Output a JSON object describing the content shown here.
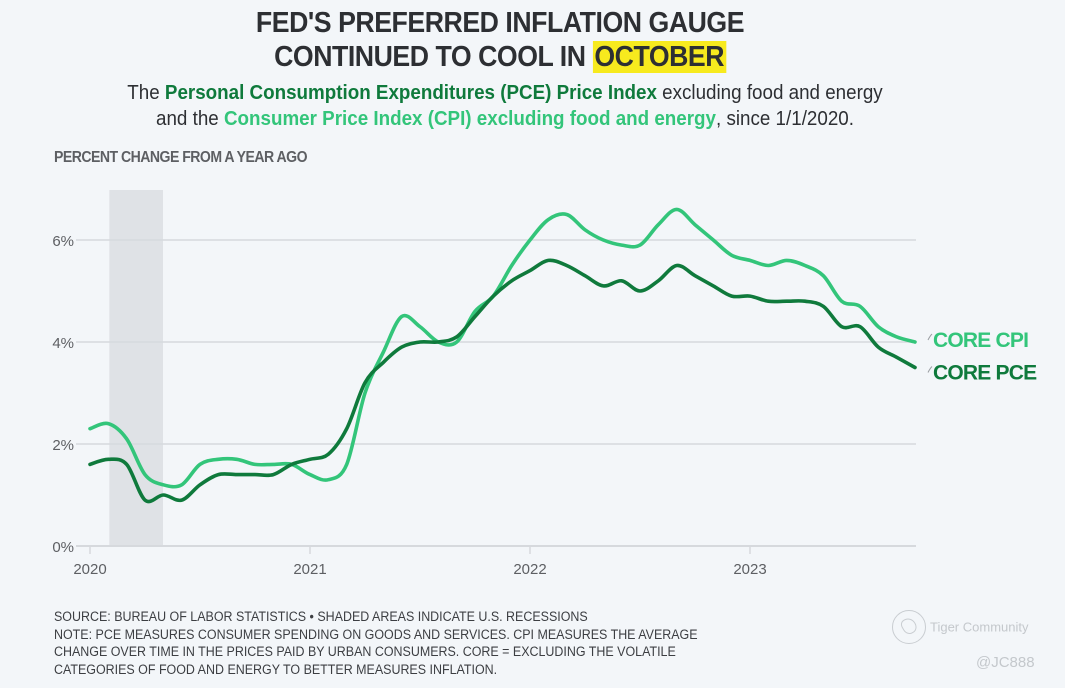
{
  "header": {
    "title_line1": "FED'S PREFERRED INFLATION GAUGE",
    "title_line2_prefix": "CONTINUED TO COOL IN ",
    "title_highlight": "OCTOBER",
    "subtitle": {
      "part1": "The ",
      "pce_text": "Personal Consumption Expenditures (PCE) Price Index",
      "part2": " excluding food and energy",
      "part3": "and the ",
      "cpi_text": "Consumer Price Index (CPI) excluding food and energy",
      "part4": ", since 1/1/2020."
    }
  },
  "colors": {
    "core_cpi": "#33c57a",
    "core_pce": "#0f7a3c",
    "highlight": "#f7ea1e",
    "recession_shade": "#dfe2e6",
    "gridline": "#d6d9dd"
  },
  "chart_data": {
    "type": "line",
    "title": "PERCENT CHANGE FROM A YEAR AGO",
    "xlabel": "",
    "ylabel": "PERCENT CHANGE FROM A YEAR AGO",
    "x_start": "2020-01",
    "x_end": "2023-10",
    "x_ticks": [
      "2020",
      "2021",
      "2022",
      "2023"
    ],
    "y_ticks": [
      "0%",
      "2%",
      "4%",
      "6%"
    ],
    "ylim": [
      0,
      7
    ],
    "grid": "horizontal",
    "recessions": [
      {
        "start": "2020-02",
        "end": "2020-04",
        "label": "U.S. recession"
      }
    ],
    "legend": "right-end-labels",
    "series": [
      {
        "name": "CORE CPI",
        "values": [
          2.3,
          2.4,
          2.1,
          1.4,
          1.2,
          1.2,
          1.6,
          1.7,
          1.7,
          1.6,
          1.6,
          1.6,
          1.4,
          1.3,
          1.6,
          3.0,
          3.8,
          4.5,
          4.3,
          4.0,
          4.0,
          4.6,
          4.9,
          5.5,
          6.0,
          6.4,
          6.5,
          6.2,
          6.0,
          5.9,
          5.9,
          6.3,
          6.6,
          6.3,
          6.0,
          5.7,
          5.6,
          5.5,
          5.6,
          5.5,
          5.3,
          4.8,
          4.7,
          4.3,
          4.1,
          4.0
        ]
      },
      {
        "name": "CORE PCE",
        "values": [
          1.6,
          1.7,
          1.6,
          0.9,
          1.0,
          0.9,
          1.2,
          1.4,
          1.4,
          1.4,
          1.4,
          1.6,
          1.7,
          1.8,
          2.3,
          3.2,
          3.6,
          3.9,
          4.0,
          4.0,
          4.1,
          4.5,
          4.9,
          5.2,
          5.4,
          5.6,
          5.5,
          5.3,
          5.1,
          5.2,
          5.0,
          5.2,
          5.5,
          5.3,
          5.1,
          4.9,
          4.9,
          4.8,
          4.8,
          4.8,
          4.7,
          4.3,
          4.3,
          3.9,
          3.7,
          3.5
        ]
      }
    ]
  },
  "footer": {
    "source": "SOURCE: BUREAU OF LABOR STATISTICS • SHADED AREAS INDICATE U.S. RECESSIONS",
    "note_line1": "NOTE: PCE MEASURES CONSUMER SPENDING ON GOODS AND SERVICES. CPI MEASURES THE AVERAGE",
    "note_line2": "CHANGE OVER TIME IN THE PRICES PAID BY URBAN CONSUMERS. CORE = EXCLUDING THE VOLATILE",
    "note_line3": "CATEGORIES OF FOOD AND ENERGY TO BETTER MEASURES INFLATION."
  },
  "watermark": {
    "brand": "Tiger Community",
    "user": "@JC888",
    "logo_icon": "tiger-community-logo"
  }
}
